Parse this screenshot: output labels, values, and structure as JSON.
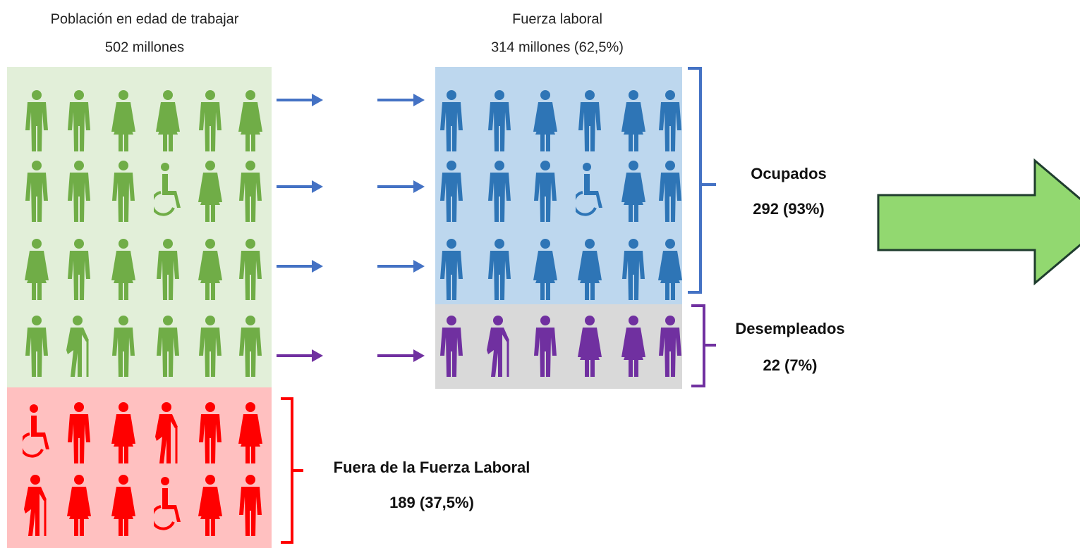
{
  "working_age": {
    "title": "Población en edad de trabajar",
    "value": "502 millones"
  },
  "labor_force": {
    "title": "Fuerza laboral",
    "value": "314 millones (62,5%)"
  },
  "employed": {
    "title": "Ocupados",
    "value": "292 (93%)"
  },
  "unemployed": {
    "title": "Desempleados",
    "value": "22 (7%)"
  },
  "out_of_labor_force": {
    "title": "Fuera de la Fuerza Laboral",
    "value": "189 (37,5%)"
  }
}
